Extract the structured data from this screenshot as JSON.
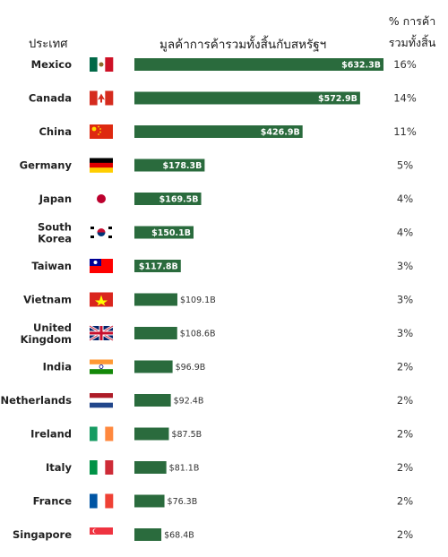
{
  "headers": {
    "country": "ประเทศ",
    "value": "มูลค้าการค้ารวมทั้งสิ้นกับสหรัฐฯ",
    "share_line1": "% การค้า",
    "share_line2": "รวมทั้งสิ้น"
  },
  "colors": {
    "bar": "#2a6b3d",
    "bar_light": "#3f7e4e"
  },
  "chart_data": {
    "type": "bar",
    "orientation": "horizontal",
    "title": "",
    "xlabel": "มูลค้าการค้ารวมทั้งสิ้นกับสหรัฐฯ",
    "ylabel": "ประเทศ",
    "categories": [
      {
        "name": "Mexico",
        "flag": "mexico-flag-icon"
      },
      {
        "name": "Canada",
        "flag": "canada-flag-icon"
      },
      {
        "name": "China",
        "flag": "china-flag-icon"
      },
      {
        "name": "Germany",
        "flag": "germany-flag-icon"
      },
      {
        "name": "Japan",
        "flag": "japan-flag-icon"
      },
      {
        "name": "South Korea",
        "flag": "south-korea-flag-icon"
      },
      {
        "name": "Taiwan",
        "flag": "taiwan-flag-icon"
      },
      {
        "name": "Vietnam",
        "flag": "vietnam-flag-icon"
      },
      {
        "name": "United Kingdom",
        "flag": "uk-flag-icon"
      },
      {
        "name": "India",
        "flag": "india-flag-icon"
      },
      {
        "name": "Netherlands",
        "flag": "netherlands-flag-icon"
      },
      {
        "name": "Ireland",
        "flag": "ireland-flag-icon"
      },
      {
        "name": "Italy",
        "flag": "italy-flag-icon"
      },
      {
        "name": "France",
        "flag": "france-flag-icon"
      },
      {
        "name": "Singapore",
        "flag": "singapore-flag-icon"
      }
    ],
    "values": [
      632.3,
      572.9,
      426.9,
      178.3,
      169.5,
      150.1,
      117.8,
      109.1,
      108.6,
      96.9,
      92.4,
      87.5,
      81.1,
      76.3,
      68.4
    ],
    "value_labels": [
      "$632.3B",
      "$572.9B",
      "$426.9B",
      "$178.3B",
      "$169.5B",
      "$150.1B",
      "$117.8B",
      "$109.1B",
      "$108.6B",
      "$96.9B",
      "$92.4B",
      "$87.5B",
      "$81.1B",
      "$76.3B",
      "$68.4B"
    ],
    "share_labels": [
      "16%",
      "14%",
      "11%",
      "5%",
      "4%",
      "4%",
      "3%",
      "3%",
      "3%",
      "2%",
      "2%",
      "2%",
      "2%",
      "2%",
      "2%"
    ],
    "xlim": [
      0,
      632.3
    ],
    "grid": false,
    "legend": "none"
  }
}
